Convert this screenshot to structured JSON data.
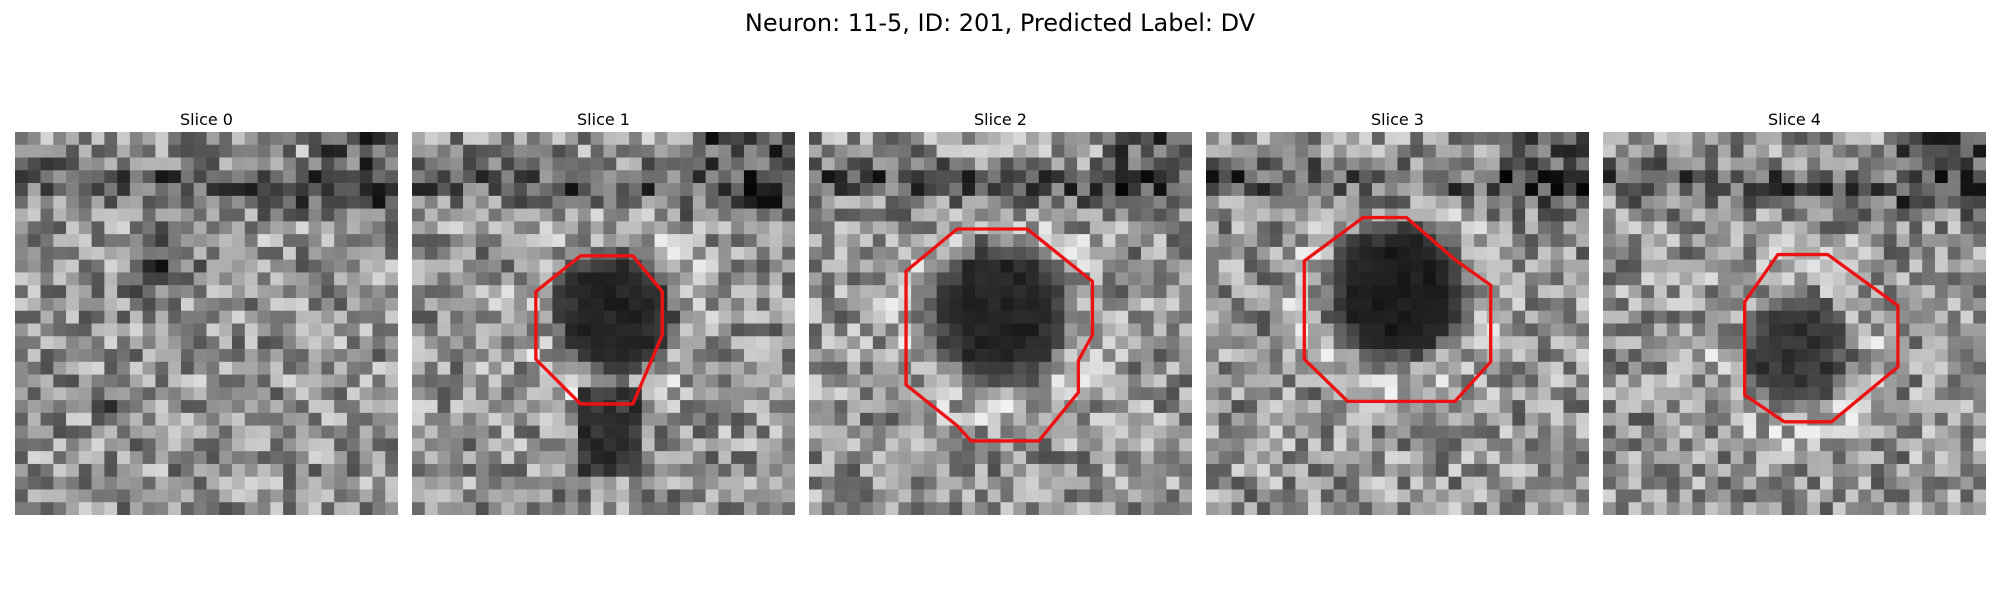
{
  "figure": {
    "title": "Neuron: 11-5, ID: 201, Predicted Label: DV"
  },
  "panels": [
    {
      "title": "Slice 0",
      "cell_region": "none"
    },
    {
      "title": "Slice 1",
      "cell_region": "dark soma, outlined in red"
    },
    {
      "title": "Slice 2",
      "cell_region": "dark soma, outlined in red"
    },
    {
      "title": "Slice 3",
      "cell_region": "dark soma, outlined in red"
    },
    {
      "title": "Slice 4",
      "cell_region": "dark soma, outlined in red"
    }
  ],
  "colors": {
    "contour": "#ee1111",
    "background": "#ffffff"
  }
}
